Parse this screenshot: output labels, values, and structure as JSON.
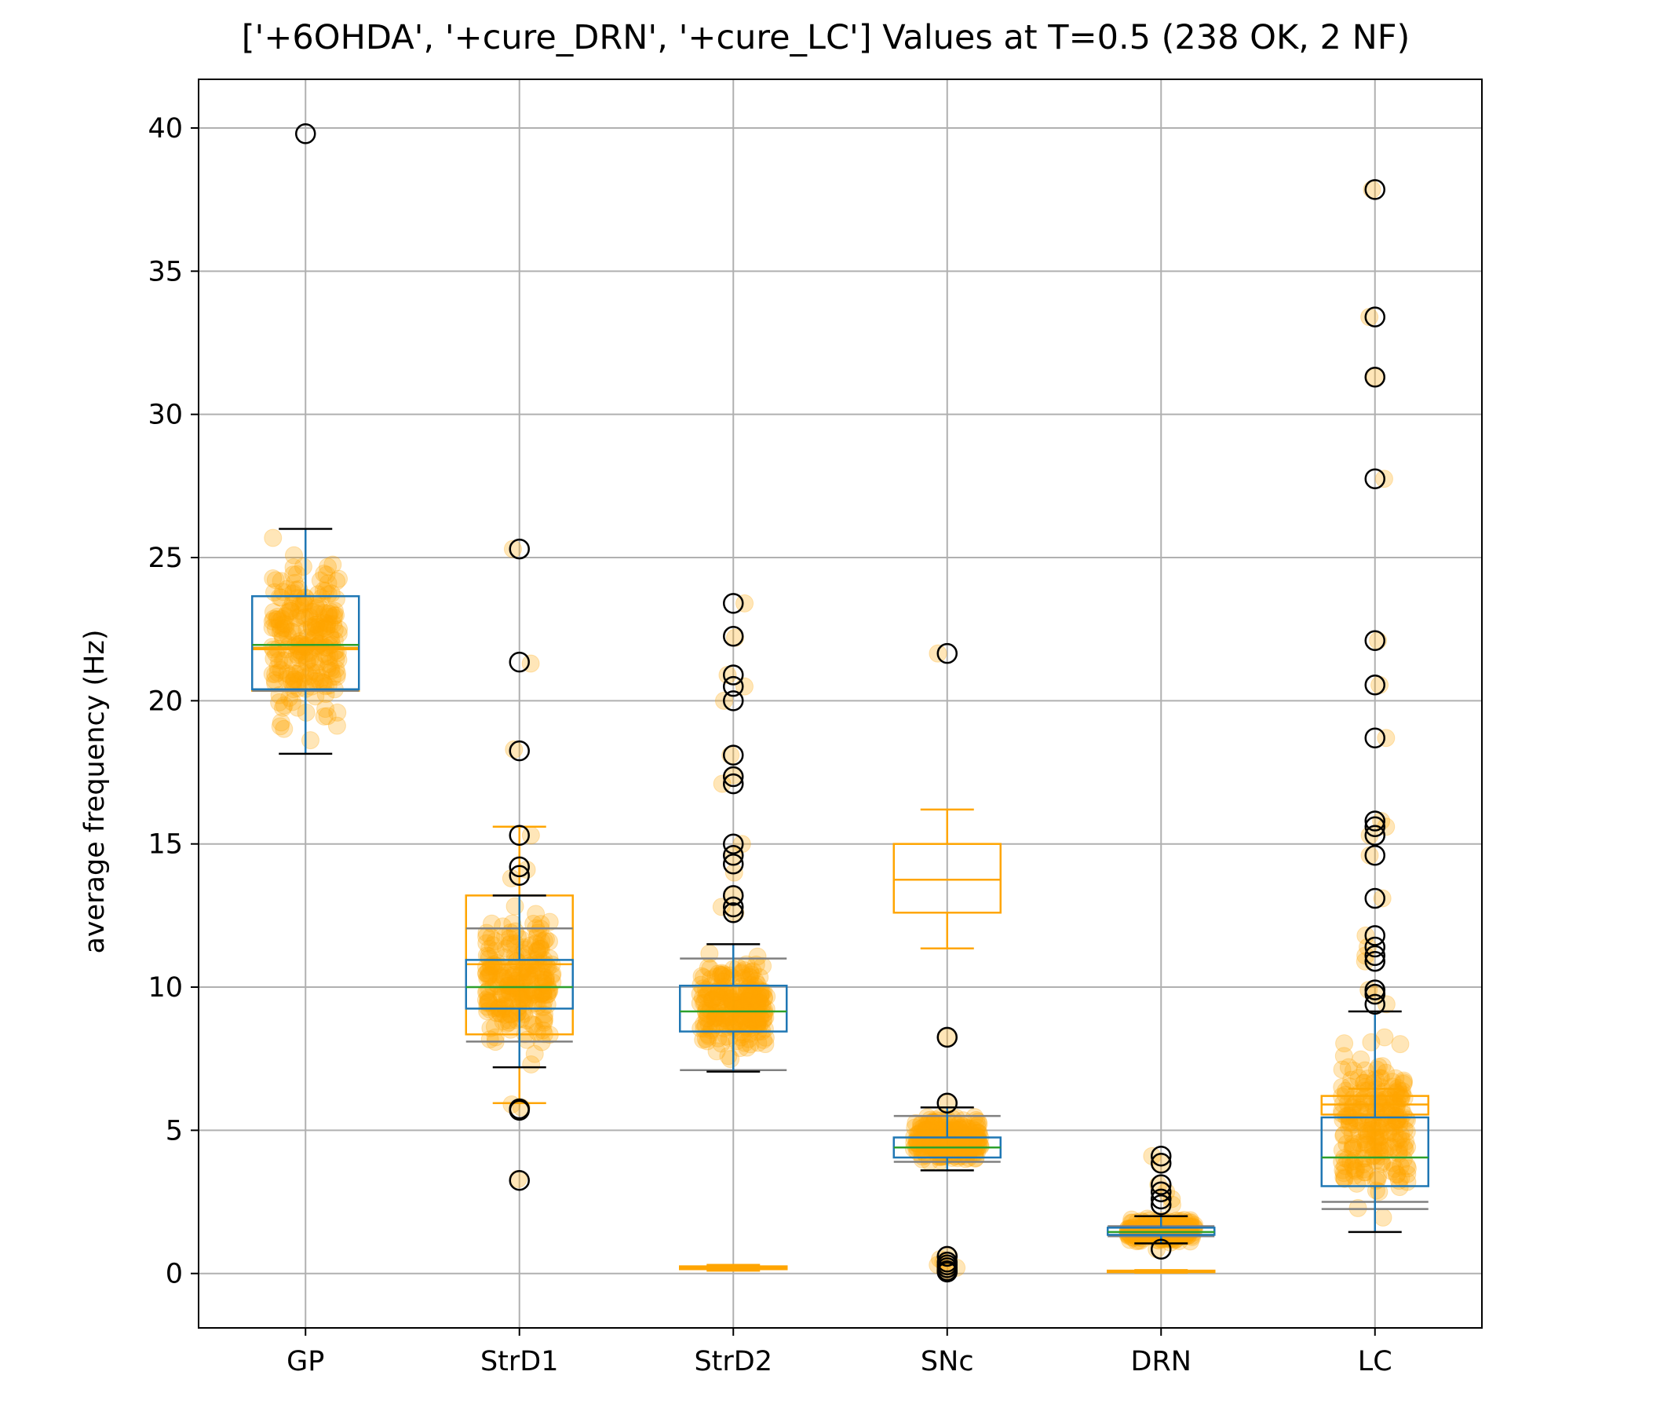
{
  "chart_data": {
    "type": "box",
    "title": "['+6OHDA', '+cure_DRN', '+cure_LC'] Values at T=0.5 (238 OK, 2 NF)",
    "xlabel": "",
    "ylabel": "average frequency (Hz)",
    "ylim": [
      -1.9,
      41.7
    ],
    "yticks": [
      0,
      5,
      10,
      15,
      20,
      25,
      30,
      35,
      40
    ],
    "grid": true,
    "categories": [
      "GP",
      "StrD1",
      "StrD2",
      "SNc",
      "DRN",
      "LC"
    ],
    "colors": {
      "primary_box": "#1f77b4",
      "median": "#2ca02c",
      "reference_box": "#ffa500",
      "reference_median_band": "#808080",
      "points": "#ffa500",
      "outlier_marker": "#000000"
    },
    "primary_boxes": [
      {
        "category": "GP",
        "q1": 20.4,
        "median": 21.95,
        "q3": 23.65,
        "whisker_low": 18.15,
        "whisker_high": 26.0,
        "outliers": [
          39.8
        ]
      },
      {
        "category": "StrD1",
        "q1": 9.25,
        "median": 10.0,
        "q3": 10.95,
        "whisker_low": 7.2,
        "whisker_high": 13.2,
        "outliers": [
          25.3,
          21.35,
          18.25,
          15.3,
          14.2,
          13.9,
          5.75,
          5.7,
          3.25
        ]
      },
      {
        "category": "StrD2",
        "q1": 8.45,
        "median": 9.15,
        "q3": 10.05,
        "whisker_low": 7.05,
        "whisker_high": 11.5,
        "outliers": [
          23.4,
          22.25,
          20.9,
          20.5,
          20.0,
          18.1,
          17.35,
          17.1,
          15.0,
          14.6,
          14.3,
          13.2,
          12.8,
          12.6
        ]
      },
      {
        "category": "SNc",
        "q1": 4.05,
        "median": 4.4,
        "q3": 4.75,
        "whisker_low": 3.6,
        "whisker_high": 5.8,
        "outliers": [
          21.65,
          8.25,
          5.95,
          0.6,
          0.4,
          0.3,
          0.2,
          0.1,
          0.05
        ]
      },
      {
        "category": "DRN",
        "q1": 1.35,
        "median": 1.45,
        "q3": 1.6,
        "whisker_low": 1.05,
        "whisker_high": 2.0,
        "outliers": [
          4.1,
          3.85,
          3.1,
          2.85,
          2.6,
          2.4,
          0.85
        ]
      },
      {
        "category": "LC",
        "q1": 3.05,
        "median": 4.05,
        "q3": 5.45,
        "whisker_low": 1.45,
        "whisker_high": 9.15,
        "outliers": [
          37.85,
          33.4,
          31.3,
          27.75,
          22.1,
          20.55,
          18.7,
          15.8,
          15.6,
          15.3,
          14.6,
          13.1,
          11.8,
          11.4,
          11.1,
          10.9,
          9.9,
          9.75,
          9.4
        ]
      }
    ],
    "reference_boxes": [
      {
        "category": "GP",
        "q1": 20.35,
        "median": 21.8,
        "q3": 21.85,
        "whisker_low": 20.35,
        "whisker_high": 21.85
      },
      {
        "category": "StrD1",
        "q1": 8.35,
        "median": 10.8,
        "q3": 13.2,
        "whisker_low": 5.95,
        "whisker_high": 15.6
      },
      {
        "category": "StrD2",
        "q1": 0.15,
        "median": 0.2,
        "q3": 0.25,
        "whisker_low": 0.1,
        "whisker_high": 0.3
      },
      {
        "category": "SNc",
        "q1": 12.6,
        "median": 13.75,
        "q3": 15.0,
        "whisker_low": 11.35,
        "whisker_high": 16.2
      },
      {
        "category": "DRN",
        "q1": 0.05,
        "median": 0.08,
        "q3": 0.1,
        "whisker_low": 0.03,
        "whisker_high": 0.12
      },
      {
        "category": "LC",
        "q1": 5.55,
        "median": 5.9,
        "q3": 6.2,
        "whisker_low": 5.55,
        "whisker_high": 6.45
      }
    ],
    "reference_median_bands": [
      {
        "category": "GP",
        "low": 20.35,
        "high": 20.4
      },
      {
        "category": "StrD1",
        "low": 8.1,
        "high": 12.05
      },
      {
        "category": "StrD2",
        "low": 7.1,
        "high": 11.0
      },
      {
        "category": "SNc",
        "low": 3.9,
        "high": 5.5
      },
      {
        "category": "DRN",
        "low": 1.3,
        "high": 1.65
      },
      {
        "category": "LC",
        "low": 2.25,
        "high": 2.5
      }
    ],
    "point_clouds": [
      {
        "category": "GP",
        "min": 18.2,
        "max": 26.0,
        "count": 238
      },
      {
        "category": "StrD1",
        "min": 7.2,
        "max": 13.2,
        "count": 238
      },
      {
        "category": "StrD2",
        "min": 7.05,
        "max": 11.5,
        "count": 238
      },
      {
        "category": "SNc",
        "min": 3.6,
        "max": 5.8,
        "count": 238
      },
      {
        "category": "DRN",
        "min": 1.0,
        "max": 2.0,
        "count": 238
      },
      {
        "category": "LC",
        "min": 1.45,
        "max": 9.0,
        "count": 238
      }
    ],
    "point_extras": {
      "StrD1": [
        13.8,
        14.1,
        15.3,
        18.3,
        21.3,
        25.3,
        5.8,
        5.9,
        3.3,
        7.3
      ],
      "StrD2": [
        12.6,
        12.8,
        13.2,
        14.0,
        14.6,
        15.0,
        17.1,
        17.4,
        18.1,
        20.0,
        20.5,
        20.9,
        22.2,
        23.4
      ],
      "SNc": [
        0.05,
        0.1,
        0.2,
        0.3,
        0.4,
        0.5,
        0.6,
        5.95,
        8.25,
        21.65
      ],
      "DRN": [
        2.4,
        2.6,
        2.85,
        3.1,
        3.85,
        4.1,
        0.85
      ],
      "LC": [
        9.4,
        9.75,
        9.9,
        10.9,
        11.1,
        11.4,
        11.8,
        13.1,
        14.6,
        15.3,
        15.6,
        15.8,
        18.7,
        20.55,
        22.1,
        27.75,
        31.3,
        33.4,
        37.85
      ]
    }
  }
}
